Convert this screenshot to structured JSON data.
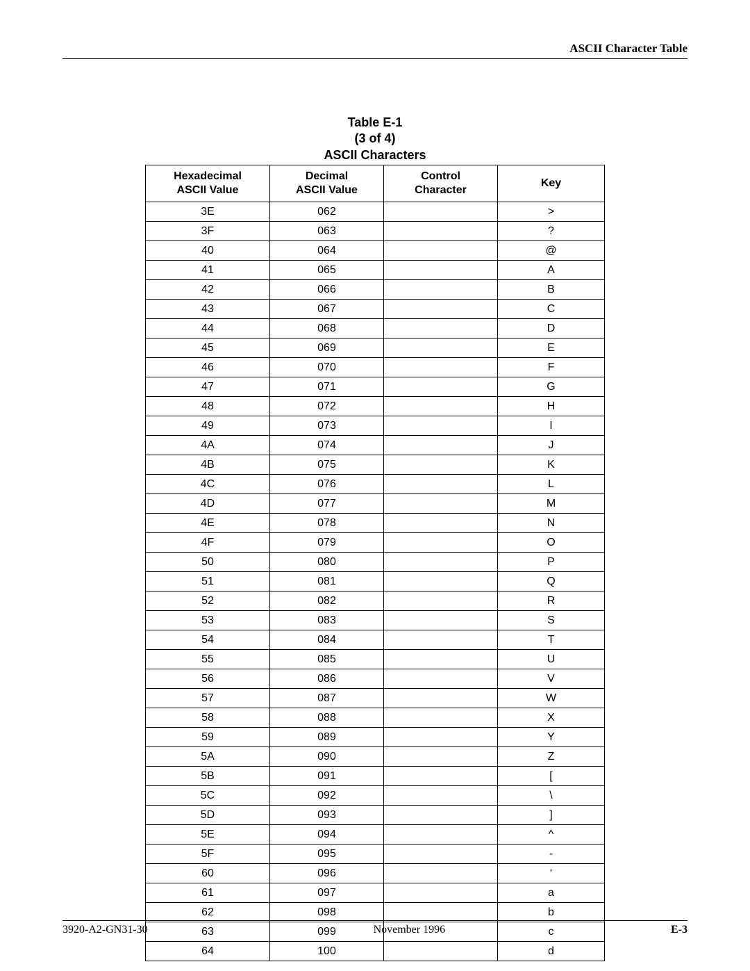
{
  "header": {
    "running_title": "ASCII Character Table"
  },
  "table": {
    "label": "Table E-1",
    "part": "(3 of 4)",
    "title": "ASCII Characters",
    "columns": [
      "Hexadecimal\nASCII Value",
      "Decimal\nASCII Value",
      "Control\nCharacter",
      "Key"
    ],
    "rows": [
      {
        "hex": "3E",
        "dec": "062",
        "ctrl": "",
        "key": ">"
      },
      {
        "hex": "3F",
        "dec": "063",
        "ctrl": "",
        "key": "?"
      },
      {
        "hex": "40",
        "dec": "064",
        "ctrl": "",
        "key": "@"
      },
      {
        "hex": "41",
        "dec": "065",
        "ctrl": "",
        "key": "A"
      },
      {
        "hex": "42",
        "dec": "066",
        "ctrl": "",
        "key": "B"
      },
      {
        "hex": "43",
        "dec": "067",
        "ctrl": "",
        "key": "C"
      },
      {
        "hex": "44",
        "dec": "068",
        "ctrl": "",
        "key": "D"
      },
      {
        "hex": "45",
        "dec": "069",
        "ctrl": "",
        "key": "E"
      },
      {
        "hex": "46",
        "dec": "070",
        "ctrl": "",
        "key": "F"
      },
      {
        "hex": "47",
        "dec": "071",
        "ctrl": "",
        "key": "G"
      },
      {
        "hex": "48",
        "dec": "072",
        "ctrl": "",
        "key": "H"
      },
      {
        "hex": "49",
        "dec": "073",
        "ctrl": "",
        "key": "I"
      },
      {
        "hex": "4A",
        "dec": "074",
        "ctrl": "",
        "key": "J"
      },
      {
        "hex": "4B",
        "dec": "075",
        "ctrl": "",
        "key": "K"
      },
      {
        "hex": "4C",
        "dec": "076",
        "ctrl": "",
        "key": "L"
      },
      {
        "hex": "4D",
        "dec": "077",
        "ctrl": "",
        "key": "M"
      },
      {
        "hex": "4E",
        "dec": "078",
        "ctrl": "",
        "key": "N"
      },
      {
        "hex": "4F",
        "dec": "079",
        "ctrl": "",
        "key": "O"
      },
      {
        "hex": "50",
        "dec": "080",
        "ctrl": "",
        "key": "P"
      },
      {
        "hex": "51",
        "dec": "081",
        "ctrl": "",
        "key": "Q"
      },
      {
        "hex": "52",
        "dec": "082",
        "ctrl": "",
        "key": "R"
      },
      {
        "hex": "53",
        "dec": "083",
        "ctrl": "",
        "key": "S"
      },
      {
        "hex": "54",
        "dec": "084",
        "ctrl": "",
        "key": "T"
      },
      {
        "hex": "55",
        "dec": "085",
        "ctrl": "",
        "key": "U"
      },
      {
        "hex": "56",
        "dec": "086",
        "ctrl": "",
        "key": "V"
      },
      {
        "hex": "57",
        "dec": "087",
        "ctrl": "",
        "key": "W"
      },
      {
        "hex": "58",
        "dec": "088",
        "ctrl": "",
        "key": "X"
      },
      {
        "hex": "59",
        "dec": "089",
        "ctrl": "",
        "key": "Y"
      },
      {
        "hex": "5A",
        "dec": "090",
        "ctrl": "",
        "key": "Z"
      },
      {
        "hex": "5B",
        "dec": "091",
        "ctrl": "",
        "key": "["
      },
      {
        "hex": "5C",
        "dec": "092",
        "ctrl": "",
        "key": "\\"
      },
      {
        "hex": "5D",
        "dec": "093",
        "ctrl": "",
        "key": "]"
      },
      {
        "hex": "5E",
        "dec": "094",
        "ctrl": "",
        "key": "^"
      },
      {
        "hex": "5F",
        "dec": "095",
        "ctrl": "",
        "key": "-"
      },
      {
        "hex": "60",
        "dec": "096",
        "ctrl": "",
        "key": "‘"
      },
      {
        "hex": "61",
        "dec": "097",
        "ctrl": "",
        "key": "a"
      },
      {
        "hex": "62",
        "dec": "098",
        "ctrl": "",
        "key": "b"
      },
      {
        "hex": "63",
        "dec": "099",
        "ctrl": "",
        "key": "c"
      },
      {
        "hex": "64",
        "dec": "100",
        "ctrl": "",
        "key": "d"
      }
    ]
  },
  "footer": {
    "doc_id": "3920-A2-GN31-30",
    "date": "November 1996",
    "page": "E-3"
  }
}
